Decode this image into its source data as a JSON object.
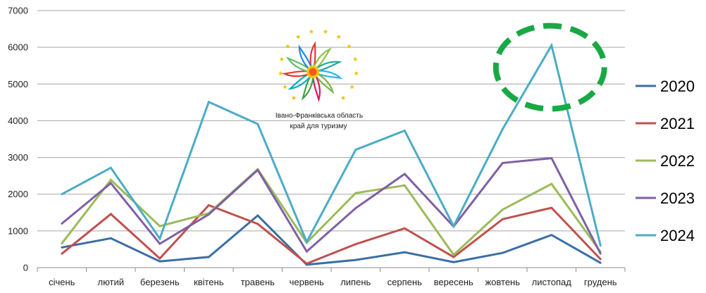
{
  "chart_data": {
    "type": "line",
    "categories": [
      "січень",
      "лютий",
      "березень",
      "квітень",
      "травень",
      "червень",
      "липень",
      "серпень",
      "вересень",
      "жовтень",
      "листопад",
      "грудень"
    ],
    "ylim": [
      0,
      7000
    ],
    "yticks": [
      0,
      1000,
      2000,
      3000,
      4000,
      5000,
      6000,
      7000
    ],
    "grid": true,
    "legend_position": "right",
    "series": [
      {
        "name": "2020",
        "color": "#3a6ea5",
        "values": [
          550,
          800,
          170,
          290,
          1420,
          80,
          210,
          420,
          150,
          400,
          890,
          130
        ]
      },
      {
        "name": "2021",
        "color": "#c0504d",
        "values": [
          380,
          1460,
          250,
          1700,
          1190,
          110,
          640,
          1070,
          290,
          1320,
          1630,
          230
        ]
      },
      {
        "name": "2022",
        "color": "#9bbb59",
        "values": [
          660,
          2390,
          1130,
          1480,
          2680,
          680,
          2030,
          2240,
          350,
          1580,
          2280,
          430
        ]
      },
      {
        "name": "2023",
        "color": "#7f5fa6",
        "values": [
          1200,
          2300,
          650,
          1450,
          2660,
          440,
          1620,
          2550,
          1120,
          2850,
          2980,
          380
        ]
      },
      {
        "name": "2024",
        "color": "#4bacc6",
        "values": [
          2000,
          2720,
          790,
          4510,
          3910,
          700,
          3210,
          3730,
          1130,
          3770,
          6050,
          600
        ]
      }
    ],
    "highlight": {
      "category": "листопад",
      "series": "2024",
      "color": "#1aa845"
    }
  },
  "logo": {
    "line1": "Івано-Франківська область",
    "line2": "край для туризму",
    "ring_color": "#f2c200",
    "center_color": "#f05a1a"
  }
}
